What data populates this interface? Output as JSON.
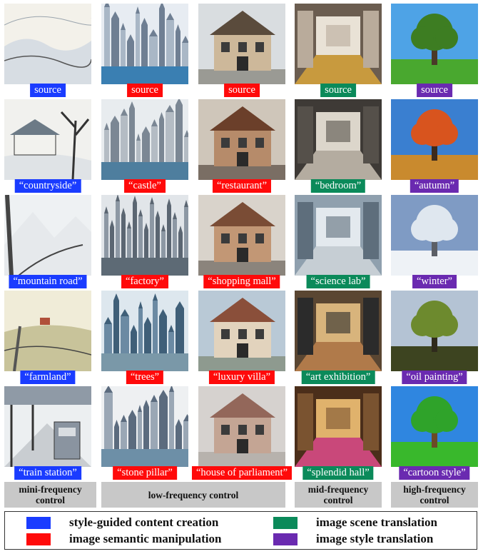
{
  "colors": {
    "content": "#1a3cff",
    "semantic": "#ff0a0a",
    "scene": "#0b8a5a",
    "style": "#6a2ab0"
  },
  "rows": [
    [
      {
        "label": "source",
        "cat": "content",
        "scene": "countryside-sketch"
      },
      {
        "label": "source",
        "cat": "semantic",
        "scene": "skyline"
      },
      {
        "label": "source",
        "cat": "semantic",
        "scene": "tudor-house"
      },
      {
        "label": "source",
        "cat": "scene",
        "scene": "closet"
      },
      {
        "label": "source",
        "cat": "style",
        "scene": "tree-summer"
      }
    ],
    [
      {
        "label": "“countryside”",
        "cat": "content",
        "scene": "farmhouse"
      },
      {
        "label": "“castle”",
        "cat": "semantic",
        "scene": "castle"
      },
      {
        "label": "“restaurant”",
        "cat": "semantic",
        "scene": "restaurant"
      },
      {
        "label": "“bedroom”",
        "cat": "scene",
        "scene": "bedroom"
      },
      {
        "label": "“autumn”",
        "cat": "style",
        "scene": "tree-autumn"
      }
    ],
    [
      {
        "label": "“mountain road”",
        "cat": "content",
        "scene": "mountain"
      },
      {
        "label": "“factory”",
        "cat": "semantic",
        "scene": "factory"
      },
      {
        "label": "“shopping mall”",
        "cat": "semantic",
        "scene": "mall"
      },
      {
        "label": "“science lab”",
        "cat": "scene",
        "scene": "lab"
      },
      {
        "label": "“winter”",
        "cat": "style",
        "scene": "tree-winter"
      }
    ],
    [
      {
        "label": "“farmland”",
        "cat": "content",
        "scene": "farmland"
      },
      {
        "label": "“trees”",
        "cat": "semantic",
        "scene": "trees"
      },
      {
        "label": "“luxury villa”",
        "cat": "semantic",
        "scene": "villa"
      },
      {
        "label": "“art exhibition”",
        "cat": "scene",
        "scene": "gallery"
      },
      {
        "label": "“oil painting”",
        "cat": "style",
        "scene": "tree-oil"
      }
    ],
    [
      {
        "label": "“train station”",
        "cat": "content",
        "scene": "train"
      },
      {
        "label": "“stone pillar”",
        "cat": "semantic",
        "scene": "pillars"
      },
      {
        "label": "“house of parliament”",
        "cat": "semantic",
        "scene": "parliament"
      },
      {
        "label": "“splendid hall”",
        "cat": "scene",
        "scene": "hall"
      },
      {
        "label": "“cartoon style”",
        "cat": "style",
        "scene": "tree-cartoon"
      }
    ]
  ],
  "controls": {
    "mini": "mini-frequency control",
    "low": "low-frequency control",
    "mid": "mid-frequency control",
    "high": "high-frequency control"
  },
  "legend": {
    "content": "style-guided content creation",
    "semantic": "image semantic manipulation",
    "scene": "image scene translation",
    "style": "image style translation"
  }
}
